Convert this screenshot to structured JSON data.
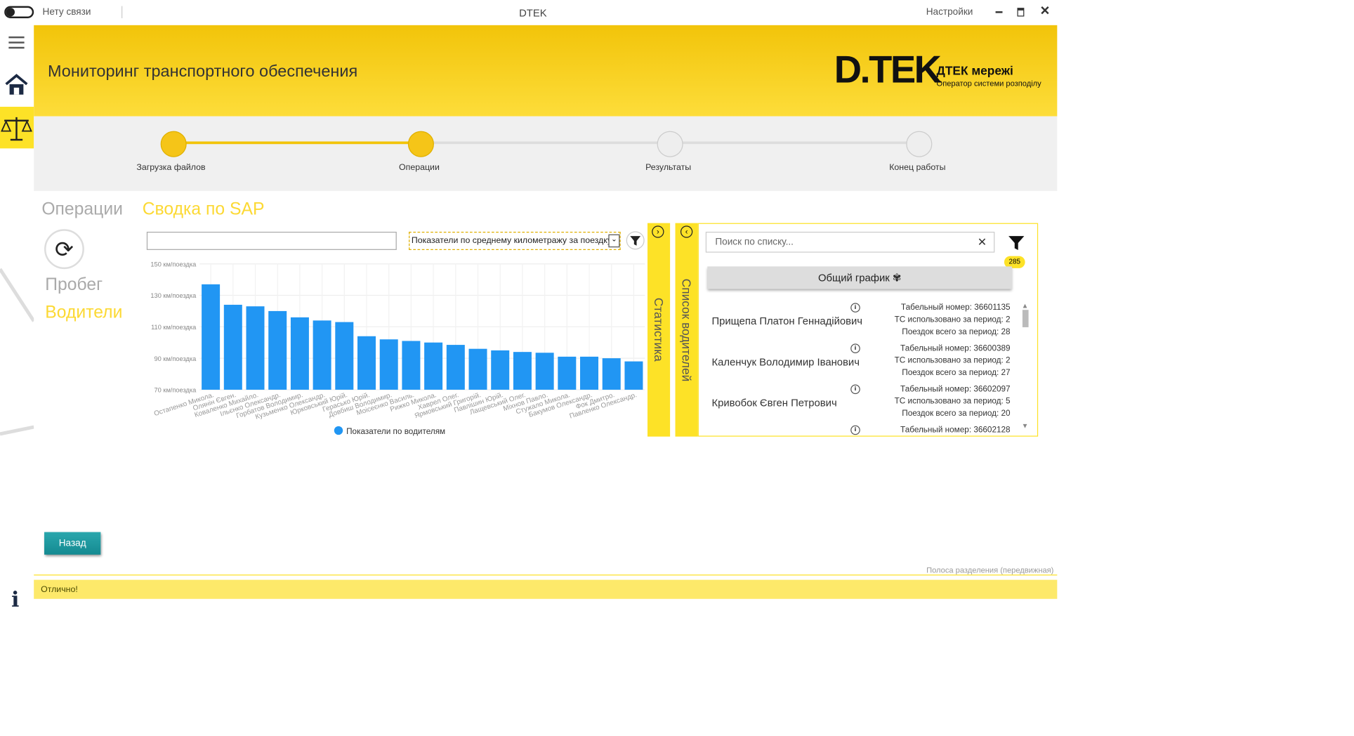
{
  "window": {
    "status": "Нету связи",
    "title": "DTEK",
    "settings": "Настройки"
  },
  "header": {
    "title": "Мониторинг транспортного обеспечения",
    "logo": "D.TEK",
    "brand": "ДТЕК мережі",
    "brand_sub": "Оператор системи розподілу"
  },
  "steps": [
    "Загрузка файлов",
    "Операции",
    "Результаты",
    "Конец работы"
  ],
  "tabs": [
    "Операции",
    "Сводка по SAP"
  ],
  "side_menu": [
    "Пробег",
    "Водители"
  ],
  "dropdown": "Показатели по среднему километражу за поездку",
  "chart_data": {
    "type": "bar",
    "categories": [
      "Остапенко Микола.",
      "Олянін Євген.",
      "Коваленко Михайло.",
      "Ільєнко Олександр.",
      "Горбатов Володимир.",
      "Кузьменко Олександр.",
      "Юрковський Юрій.",
      "Герасько Юрій.",
      "Довбиш Володимир.",
      "Моісеєнко Василь.",
      "Рижко Микола.",
      "Хаврел Олег.",
      "Ярмовський Григорій.",
      "Павлішин Юрій.",
      "Лащевський Олег.",
      "Міхнов Павло.",
      "Стужало Микола.",
      "Бакумов Олександр.",
      "Фок Дмитро.",
      "Павленко Олександр."
    ],
    "series": [
      {
        "name": "Показатели по водителям",
        "color": "#2196f3",
        "values": [
          137,
          124,
          123,
          120,
          116,
          114,
          113,
          104,
          102,
          101,
          100,
          98.5,
          96,
          95,
          94,
          93.5,
          91,
          91,
          90,
          88
        ]
      }
    ],
    "ylim": [
      70,
      150
    ],
    "yticks": [
      {
        "value": 70,
        "label": "70 км/поездка"
      },
      {
        "value": 90,
        "label": "90 км/поездка"
      },
      {
        "value": 110,
        "label": "110 км/поездка"
      },
      {
        "value": 130,
        "label": "130 км/поездка"
      },
      {
        "value": 150,
        "label": "150 км/поездка"
      }
    ],
    "grid": true
  },
  "panels": {
    "stats": "Статистика",
    "drivers": "Список водителей"
  },
  "search_placeholder": "Поиск по списку...",
  "count": "285",
  "common_chart": "Общий график",
  "drivers": [
    {
      "name": "Прищепа Платон Геннадійович",
      "tab": "Табельный номер: 36601135",
      "ts": "ТС использовано за период: 2",
      "trips": "Поездок всего за период: 28"
    },
    {
      "name": "Каленчук Володимир Іванович",
      "tab": "Табельный номер: 36600389",
      "ts": "ТС использовано за период: 2",
      "trips": "Поездок всего за период: 27"
    },
    {
      "name": "Кривобок Євген Петрович",
      "tab": "Табельный номер: 36602097",
      "ts": "ТС использовано за период: 5",
      "trips": "Поездок всего за период: 20"
    }
  ],
  "clipped_item": "Табельный номер: 36602128",
  "back": "Назад",
  "splitter": "Полоса разделения (передвижная)",
  "status": "Отлично!"
}
